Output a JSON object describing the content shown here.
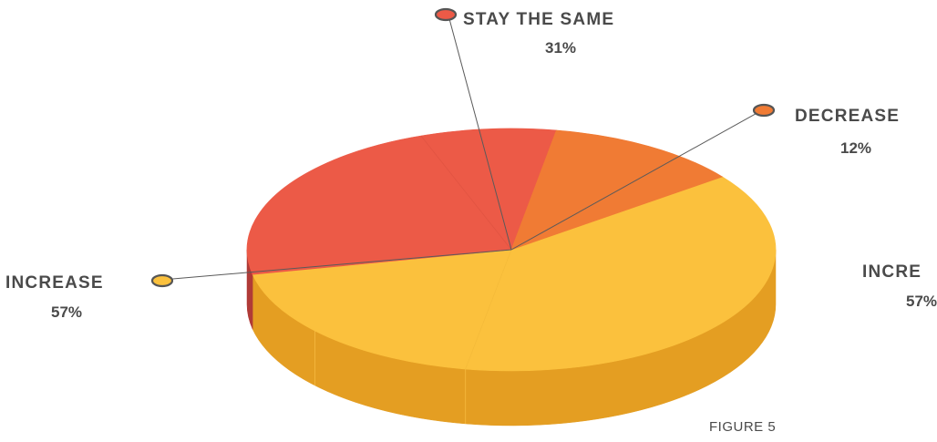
{
  "chart_data": {
    "type": "pie",
    "categories": [
      "INCREASE",
      "STAY THE SAME",
      "DECREASE"
    ],
    "values": [
      57,
      31,
      12
    ],
    "value_labels": [
      "57%",
      "31%",
      "12%"
    ],
    "colors": [
      "#FBC13D",
      "#EC5A47",
      "#F07B34"
    ],
    "side_colors": [
      "#E49E22",
      "#B03A37",
      "#C5571F"
    ],
    "callout_labels": [
      {
        "category": "STAY THE SAME",
        "value": "31%"
      },
      {
        "category": "DECREASE",
        "value": "12%"
      },
      {
        "category": "INCREASE",
        "value": "57%"
      },
      {
        "category": "INCRE",
        "value": "57%"
      }
    ],
    "legend": "callouts",
    "style": "3d-pie"
  },
  "figure_label": "FIGURE 5"
}
